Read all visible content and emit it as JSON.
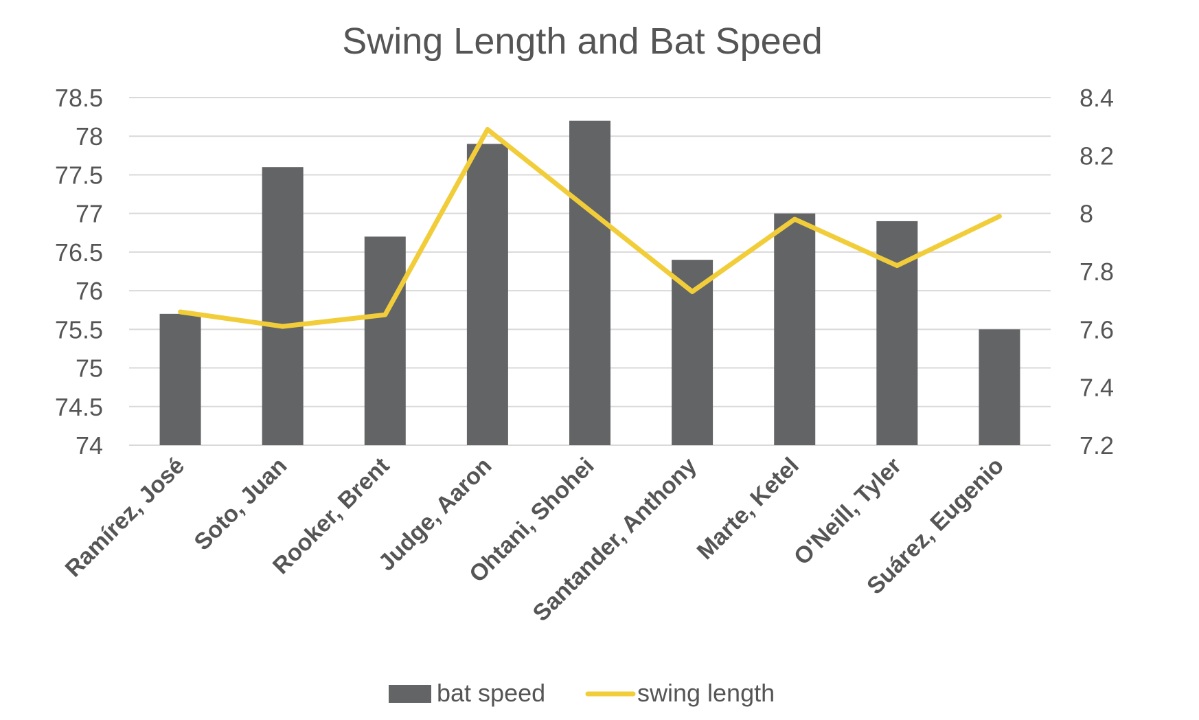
{
  "chart_data": {
    "type": "bar+line",
    "title": "Swing Length and Bat Speed",
    "categories": [
      "Ramírez, José",
      "Soto, Juan",
      "Rooker, Brent",
      "Judge, Aaron",
      "Ohtani, Shohei",
      "Santander, Anthony",
      "Marte, Ketel",
      "O'Neill, Tyler",
      "Suárez, Eugenio"
    ],
    "series": [
      {
        "name": "bat speed",
        "type": "bar",
        "axis": "left",
        "color": "#636466",
        "values": [
          75.7,
          77.6,
          76.7,
          77.9,
          78.2,
          76.4,
          77.0,
          76.9,
          75.5
        ]
      },
      {
        "name": "swing length",
        "type": "line",
        "axis": "right",
        "color": "#f2cd3a",
        "values": [
          7.66,
          7.61,
          7.65,
          8.29,
          8.01,
          7.73,
          7.98,
          7.82,
          7.99
        ]
      }
    ],
    "y_left": {
      "min": 74,
      "max": 78.5,
      "ticks": [
        74,
        74.5,
        75,
        75.5,
        76,
        76.5,
        77,
        77.5,
        78,
        78.5
      ],
      "tick_labels": [
        "74",
        "74.5",
        "75",
        "75.5",
        "76",
        "76.5",
        "77",
        "77.5",
        "78",
        "78.5"
      ]
    },
    "y_right": {
      "min": 7.2,
      "max": 8.4,
      "ticks": [
        7.2,
        7.4,
        7.6,
        7.8,
        8,
        8.2,
        8.4
      ],
      "tick_labels": [
        "7.2",
        "7.4",
        "7.6",
        "7.8",
        "8",
        "8.2",
        "8.4"
      ]
    },
    "grid": true,
    "legend": {
      "position": "bottom",
      "items": [
        "bat speed",
        "swing length"
      ]
    }
  }
}
